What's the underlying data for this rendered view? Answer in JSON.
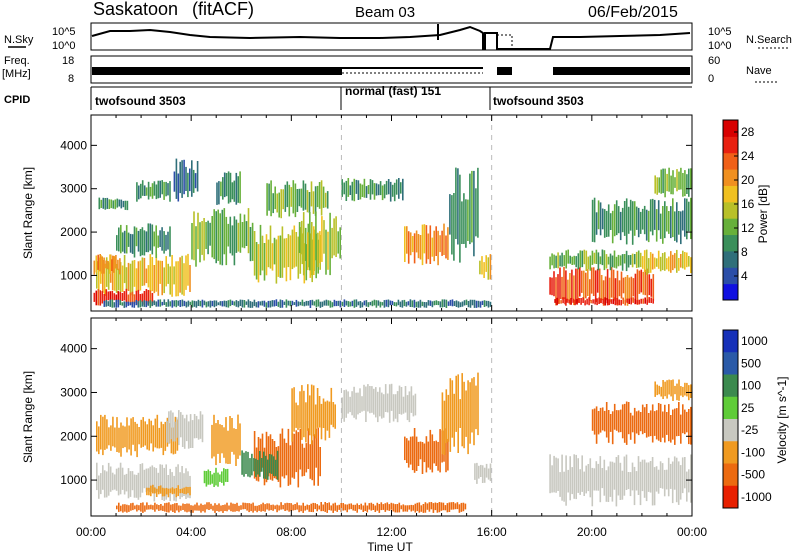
{
  "header": {
    "station": "Saskatoon",
    "algorithm": "(fitACF)",
    "beam": "Beam 03",
    "date": "06/Feb/2015"
  },
  "summary": {
    "nsky_label": "N.Sky",
    "nsky_ticks": [
      "10^5",
      "10^0"
    ],
    "nsearch_label": "N.Search",
    "nsearch_ticks": [
      "10^5",
      "10^0"
    ],
    "freq_label": "Freq.",
    "freq_unit": "[MHz]",
    "freq_ticks": [
      "18",
      "8"
    ],
    "nave_label": "Nave",
    "nave_ticks": [
      "60",
      "0"
    ],
    "cpid_label": "CPID",
    "cpid_segments": [
      {
        "label": "twofsound 3503",
        "start": 0,
        "end": 10
      },
      {
        "label": "normal (fast) 151",
        "start": 10,
        "end": 16
      },
      {
        "label": "twofsound 3503",
        "start": 16,
        "end": 24
      }
    ]
  },
  "chart_data": [
    {
      "type": "heatmap",
      "name": "power",
      "xlabel": "",
      "ylabel": "Slant Range [km]",
      "xlim": [
        0,
        24
      ],
      "ylim": [
        180,
        4700
      ],
      "yticks": [
        1000,
        2000,
        3000,
        4000
      ],
      "xticks": [
        "00:00",
        "04:00",
        "08:00",
        "12:00",
        "16:00",
        "20:00",
        "00:00"
      ],
      "colorbar": {
        "label": "Power [dB]",
        "ticks": [
          "4",
          "8",
          "12",
          "16",
          "20",
          "24",
          "28"
        ],
        "range": [
          0,
          30
        ],
        "colors": [
          "#1010e0",
          "#2b4ea8",
          "#2f6f7a",
          "#3a8f5a",
          "#67b03a",
          "#b8c028",
          "#f0c020",
          "#f09020",
          "#f06018",
          "#e82010",
          "#d80000"
        ]
      },
      "patches": [
        {
          "t": [
            0.2,
            4.0
          ],
          "r": [
            500,
            1500
          ],
          "v": 18
        },
        {
          "t": [
            0.1,
            2.5
          ],
          "r": [
            300,
            700
          ],
          "v": 28
        },
        {
          "t": [
            0.1,
            1.2
          ],
          "r": [
            1000,
            1500
          ],
          "v": 20
        },
        {
          "t": [
            1.0,
            3.2
          ],
          "r": [
            1400,
            2200
          ],
          "v": 10
        },
        {
          "t": [
            0.3,
            1.5
          ],
          "r": [
            2500,
            2800
          ],
          "v": 9
        },
        {
          "t": [
            1.8,
            3.2
          ],
          "r": [
            2700,
            3200
          ],
          "v": 8
        },
        {
          "t": [
            3.3,
            4.3
          ],
          "r": [
            2700,
            3700
          ],
          "v": 7
        },
        {
          "t": [
            4.0,
            6.5
          ],
          "r": [
            1200,
            2600
          ],
          "v": 13
        },
        {
          "t": [
            5.0,
            6.0
          ],
          "r": [
            2600,
            3400
          ],
          "v": 9
        },
        {
          "t": [
            6.5,
            9.2
          ],
          "r": [
            800,
            2200
          ],
          "v": 14
        },
        {
          "t": [
            7.0,
            9.5
          ],
          "r": [
            2300,
            3200
          ],
          "v": 11
        },
        {
          "t": [
            8.3,
            10.0
          ],
          "r": [
            1000,
            2500
          ],
          "v": 15
        },
        {
          "t": [
            10.0,
            12.5
          ],
          "r": [
            2700,
            3250
          ],
          "v": 9
        },
        {
          "t": [
            12.5,
            14.3
          ],
          "r": [
            1200,
            2200
          ],
          "v": 20
        },
        {
          "t": [
            14.3,
            15.5
          ],
          "r": [
            1200,
            3500
          ],
          "v": 10
        },
        {
          "t": [
            15.5,
            16.0
          ],
          "r": [
            900,
            1500
          ],
          "v": 18
        },
        {
          "t": [
            0.5,
            16.0
          ],
          "r": [
            250,
            450
          ],
          "v": 7
        },
        {
          "t": [
            18.3,
            22.5
          ],
          "r": [
            300,
            1200
          ],
          "v": 24
        },
        {
          "t": [
            18.3,
            22.0
          ],
          "r": [
            1100,
            1600
          ],
          "v": 13
        },
        {
          "t": [
            18.5,
            22.5
          ],
          "r": [
            300,
            500
          ],
          "v": 28
        },
        {
          "t": [
            22.0,
            24.0
          ],
          "r": [
            1000,
            1600
          ],
          "v": 18
        },
        {
          "t": [
            20.0,
            24.0
          ],
          "r": [
            1700,
            2800
          ],
          "v": 10
        },
        {
          "t": [
            22.5,
            24.0
          ],
          "r": [
            2800,
            3500
          ],
          "v": 13
        }
      ]
    },
    {
      "type": "heatmap",
      "name": "velocity",
      "xlabel": "Time UT",
      "ylabel": "Slant Range [km]",
      "xlim": [
        0,
        24
      ],
      "ylim": [
        180,
        4700
      ],
      "yticks": [
        1000,
        2000,
        3000,
        4000
      ],
      "xticks": [
        "00:00",
        "04:00",
        "08:00",
        "12:00",
        "16:00",
        "20:00",
        "00:00"
      ],
      "colorbar": {
        "label": "Velocity [m s^-1]",
        "ticks": [
          "1000",
          "500",
          "100",
          "25",
          "-25",
          "-100",
          "-500",
          "-1000"
        ],
        "colors": [
          "#1630b8",
          "#2a5aa8",
          "#3b8a4e",
          "#5fcc38",
          "#c8c8c0",
          "#f09a20",
          "#ec6a10",
          "#e82000"
        ]
      },
      "patches": [
        {
          "t": [
            0.2,
            4.0
          ],
          "r": [
            500,
            1400
          ],
          "c": 4
        },
        {
          "t": [
            0.2,
            3.5
          ],
          "r": [
            1500,
            2500
          ],
          "c": 5
        },
        {
          "t": [
            2.2,
            4.0
          ],
          "r": [
            600,
            900
          ],
          "c": 5
        },
        {
          "t": [
            3.0,
            4.5
          ],
          "r": [
            1700,
            2600
          ],
          "c": 4
        },
        {
          "t": [
            4.5,
            5.5
          ],
          "r": [
            800,
            1300
          ],
          "c": 3
        },
        {
          "t": [
            4.8,
            6.0
          ],
          "r": [
            1300,
            2500
          ],
          "c": 5
        },
        {
          "t": [
            6.5,
            9.2
          ],
          "r": [
            800,
            2200
          ],
          "c": 6
        },
        {
          "t": [
            6.0,
            7.5
          ],
          "r": [
            1000,
            1700
          ],
          "c": 2
        },
        {
          "t": [
            8.0,
            9.8
          ],
          "r": [
            1800,
            3200
          ],
          "c": 5
        },
        {
          "t": [
            10.0,
            13.0
          ],
          "r": [
            2300,
            3200
          ],
          "c": 4
        },
        {
          "t": [
            12.5,
            14.3
          ],
          "r": [
            1100,
            2200
          ],
          "c": 6
        },
        {
          "t": [
            14.0,
            15.5
          ],
          "r": [
            1500,
            3500
          ],
          "c": 5
        },
        {
          "t": [
            15.3,
            16.0
          ],
          "r": [
            900,
            1400
          ],
          "c": 4
        },
        {
          "t": [
            18.3,
            24.0
          ],
          "r": [
            400,
            1600
          ],
          "c": 4
        },
        {
          "t": [
            20.0,
            24.0
          ],
          "r": [
            1800,
            2800
          ],
          "c": 6
        },
        {
          "t": [
            22.5,
            24.0
          ],
          "r": [
            2800,
            3300
          ],
          "c": 5
        },
        {
          "t": [
            1.0,
            15.0
          ],
          "r": [
            250,
            500
          ],
          "c": 6
        }
      ]
    }
  ]
}
